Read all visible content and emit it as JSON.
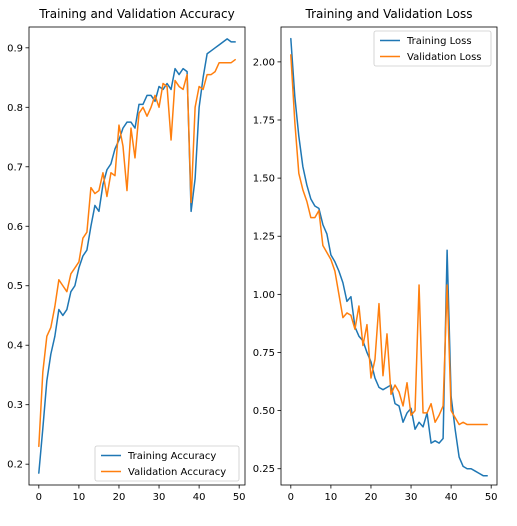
{
  "chart_data": [
    {
      "type": "line",
      "title": "Training and Validation Accuracy",
      "xlabel": "",
      "ylabel": "",
      "xlim": [
        -2.45,
        51.45
      ],
      "ylim": [
        0.165,
        0.935
      ],
      "xticks": [
        0,
        10,
        20,
        30,
        40,
        50
      ],
      "yticks": [
        0.2,
        0.3,
        0.4,
        0.5,
        0.6,
        0.7,
        0.8,
        0.9
      ],
      "grid": false,
      "legend_position": "lower-right",
      "x": [
        0,
        1,
        2,
        3,
        4,
        5,
        6,
        7,
        8,
        9,
        10,
        11,
        12,
        13,
        14,
        15,
        16,
        17,
        18,
        19,
        20,
        21,
        22,
        23,
        24,
        25,
        26,
        27,
        28,
        29,
        30,
        31,
        32,
        33,
        34,
        35,
        36,
        37,
        38,
        39,
        40,
        41,
        42,
        43,
        44,
        45,
        46,
        47,
        48,
        49
      ],
      "series": [
        {
          "name": "Training Accuracy",
          "color": "#1f77b4",
          "values": [
            0.185,
            0.26,
            0.34,
            0.385,
            0.415,
            0.46,
            0.45,
            0.46,
            0.49,
            0.5,
            0.53,
            0.55,
            0.56,
            0.6,
            0.635,
            0.625,
            0.67,
            0.695,
            0.705,
            0.73,
            0.745,
            0.765,
            0.775,
            0.775,
            0.765,
            0.805,
            0.805,
            0.82,
            0.82,
            0.81,
            0.835,
            0.83,
            0.84,
            0.83,
            0.865,
            0.855,
            0.865,
            0.86,
            0.625,
            0.68,
            0.8,
            0.85,
            0.89,
            0.895,
            0.9,
            0.905,
            0.91,
            0.915,
            0.91,
            0.91
          ]
        },
        {
          "name": "Validation Accuracy",
          "color": "#ff7f0e",
          "values": [
            0.23,
            0.355,
            0.415,
            0.43,
            0.465,
            0.51,
            0.5,
            0.49,
            0.52,
            0.53,
            0.54,
            0.58,
            0.59,
            0.665,
            0.655,
            0.66,
            0.69,
            0.65,
            0.69,
            0.685,
            0.77,
            0.735,
            0.66,
            0.765,
            0.715,
            0.79,
            0.8,
            0.785,
            0.8,
            0.82,
            0.8,
            0.84,
            0.835,
            0.745,
            0.845,
            0.835,
            0.83,
            0.855,
            0.64,
            0.8,
            0.835,
            0.83,
            0.855,
            0.855,
            0.86,
            0.875,
            0.875,
            0.875,
            0.875,
            0.88
          ]
        }
      ]
    },
    {
      "type": "line",
      "title": "Training and Validation Loss",
      "xlabel": "",
      "ylabel": "",
      "xlim": [
        -2.45,
        51.45
      ],
      "ylim": [
        0.18,
        2.15
      ],
      "xticks": [
        0,
        10,
        20,
        30,
        40,
        50
      ],
      "yticks": [
        0.25,
        0.5,
        0.75,
        1.0,
        1.25,
        1.5,
        1.75,
        2.0
      ],
      "ytick_labels": [
        "0.25",
        "0.50",
        "0.75",
        "1.00",
        "1.25",
        "1.50",
        "1.75",
        "2.00"
      ],
      "grid": false,
      "legend_position": "upper-right",
      "x": [
        0,
        1,
        2,
        3,
        4,
        5,
        6,
        7,
        8,
        9,
        10,
        11,
        12,
        13,
        14,
        15,
        16,
        17,
        18,
        19,
        20,
        21,
        22,
        23,
        24,
        25,
        26,
        27,
        28,
        29,
        30,
        31,
        32,
        33,
        34,
        35,
        36,
        37,
        38,
        39,
        40,
        41,
        42,
        43,
        44,
        45,
        46,
        47,
        48,
        49
      ],
      "series": [
        {
          "name": "Training Loss",
          "color": "#1f77b4",
          "values": [
            2.1,
            1.85,
            1.68,
            1.55,
            1.47,
            1.41,
            1.38,
            1.37,
            1.3,
            1.26,
            1.17,
            1.14,
            1.1,
            1.05,
            0.97,
            0.99,
            0.86,
            0.82,
            0.8,
            0.75,
            0.71,
            0.64,
            0.6,
            0.59,
            0.6,
            0.61,
            0.53,
            0.52,
            0.45,
            0.49,
            0.51,
            0.42,
            0.45,
            0.43,
            0.49,
            0.36,
            0.37,
            0.36,
            0.38,
            1.19,
            0.56,
            0.42,
            0.3,
            0.26,
            0.25,
            0.25,
            0.24,
            0.23,
            0.22,
            0.22
          ]
        },
        {
          "name": "Validation Loss",
          "color": "#ff7f0e",
          "values": [
            2.03,
            1.74,
            1.52,
            1.45,
            1.4,
            1.33,
            1.33,
            1.36,
            1.21,
            1.18,
            1.15,
            1.1,
            1.0,
            0.9,
            0.92,
            0.91,
            0.85,
            0.95,
            0.78,
            0.87,
            0.64,
            0.72,
            0.96,
            0.65,
            0.83,
            0.57,
            0.61,
            0.58,
            0.52,
            0.62,
            0.48,
            0.5,
            1.04,
            0.49,
            0.49,
            0.53,
            0.45,
            0.48,
            0.52,
            1.04,
            0.5,
            0.47,
            0.44,
            0.45,
            0.44,
            0.44,
            0.44,
            0.44,
            0.44,
            0.44
          ]
        }
      ]
    }
  ]
}
